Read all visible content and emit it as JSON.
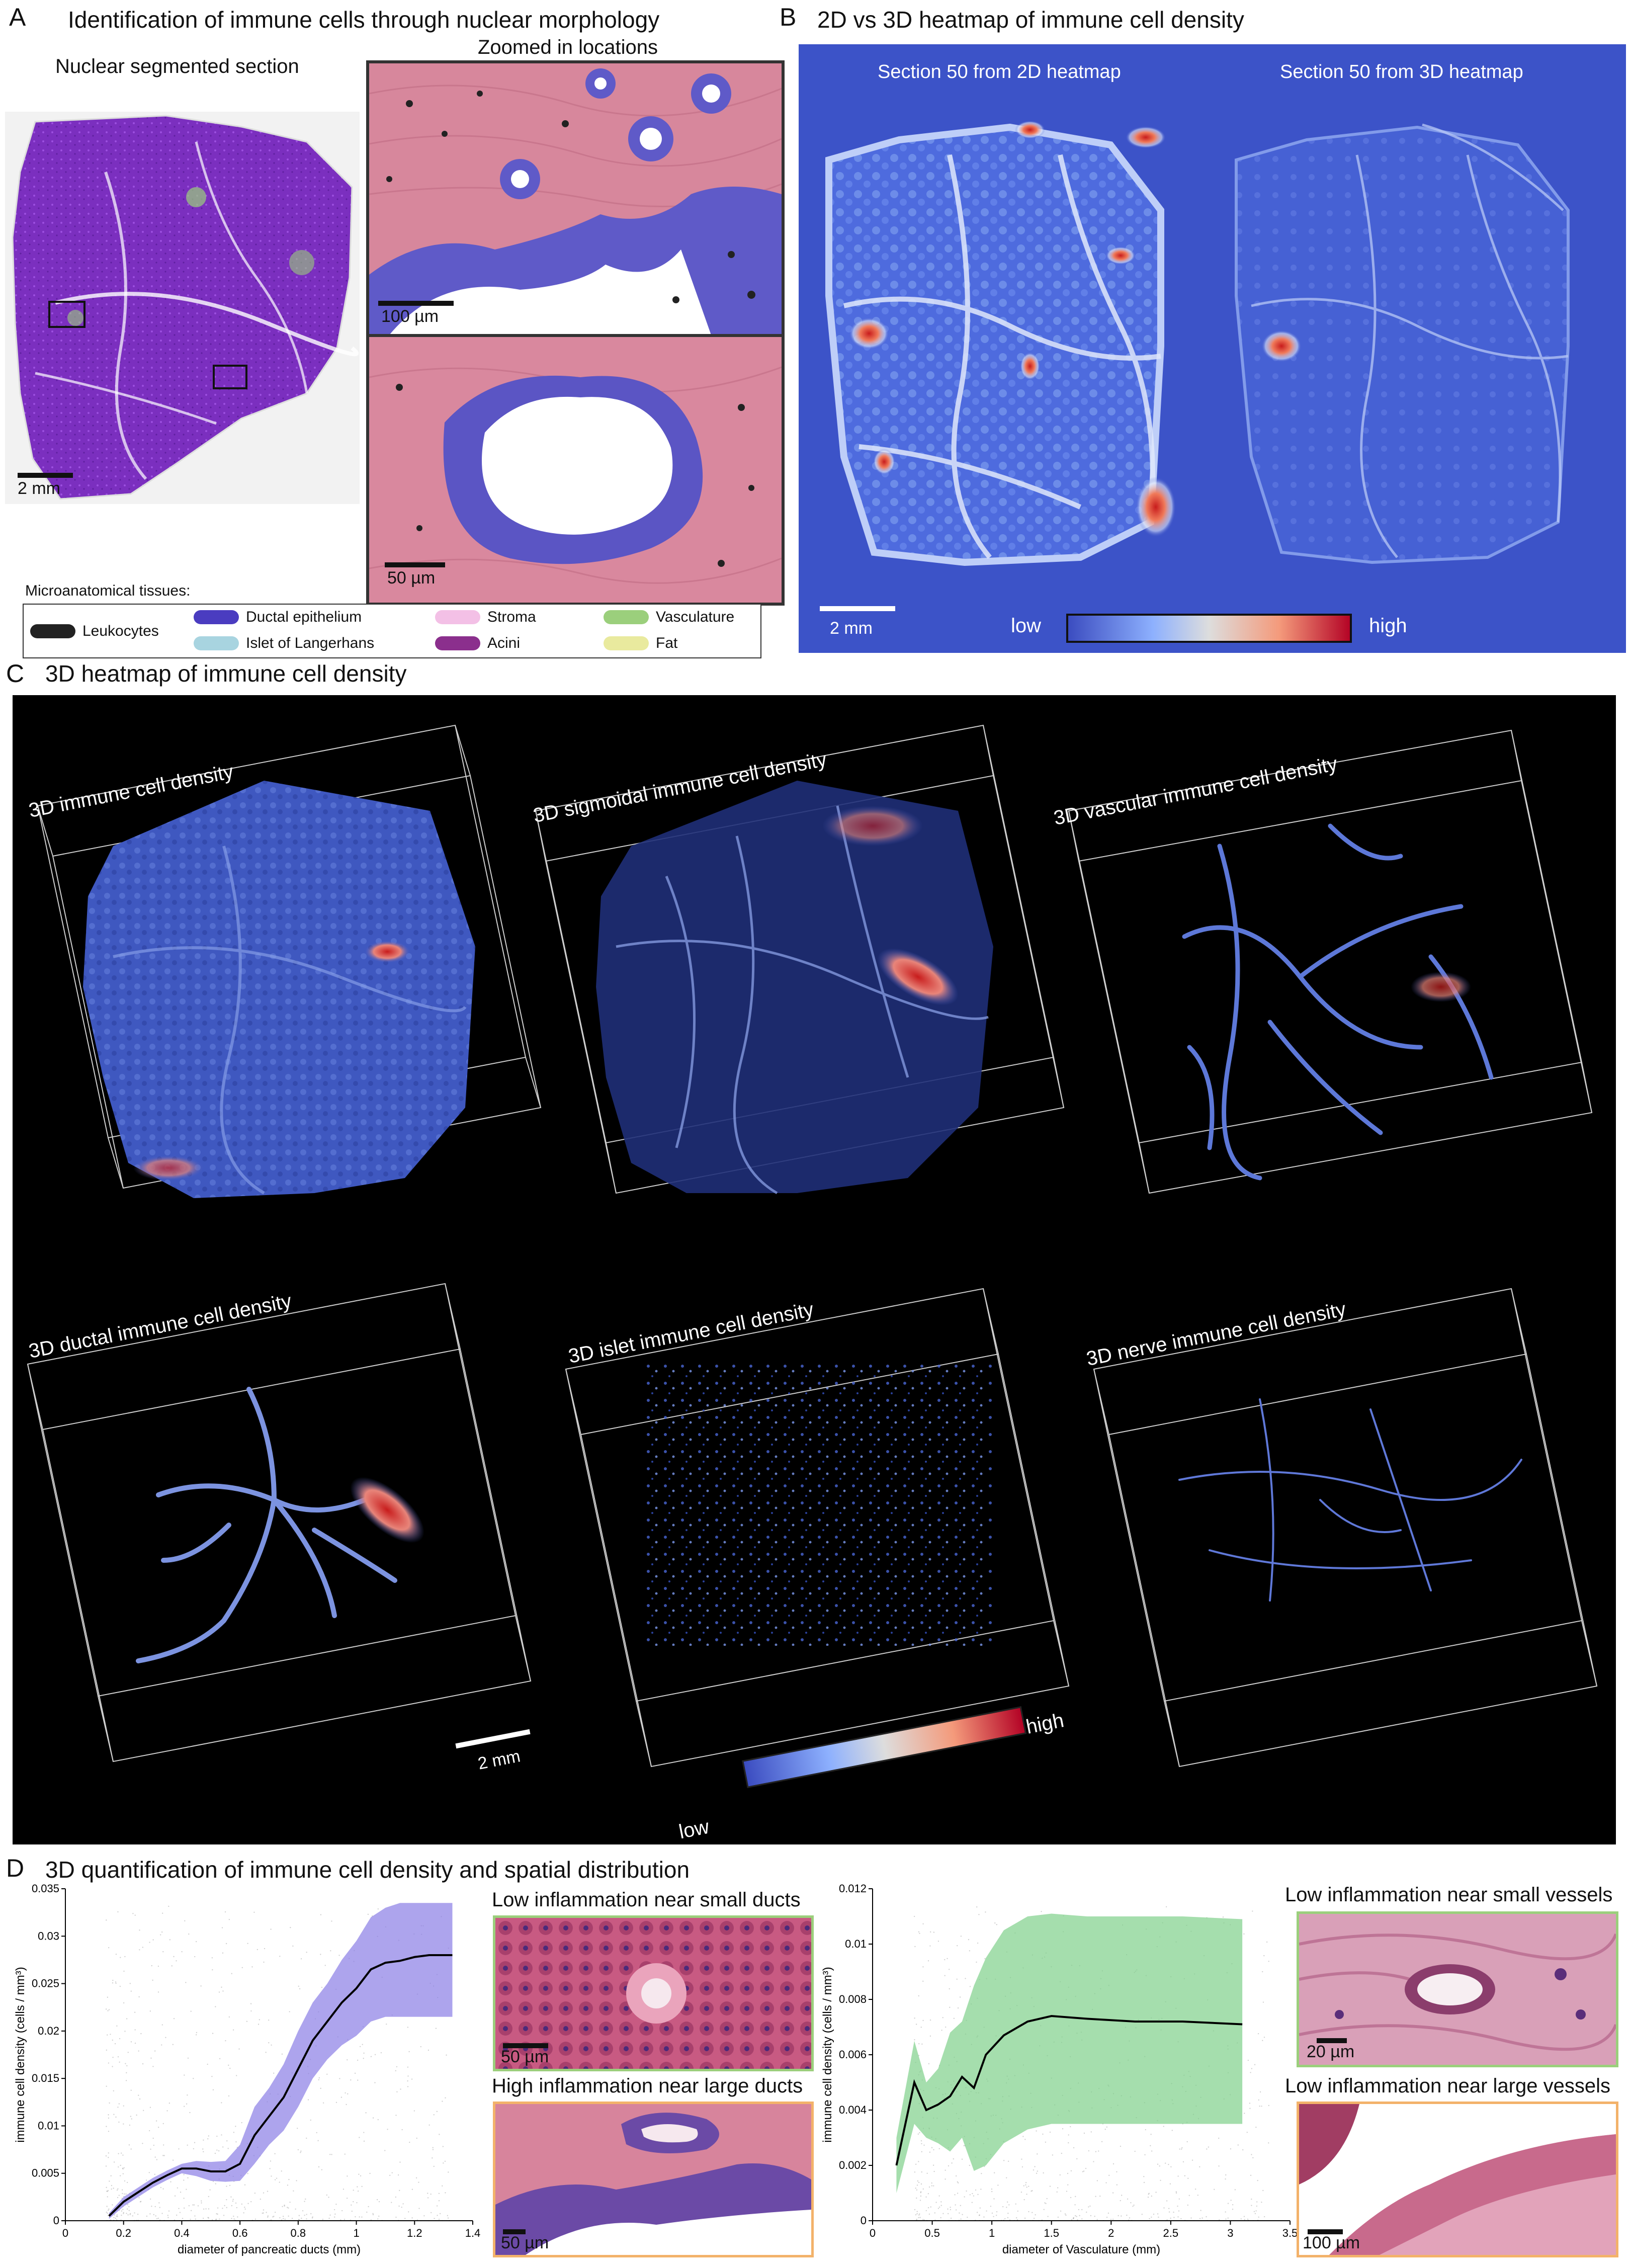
{
  "panelA": {
    "letter": "A",
    "title": "Identification of immune cells through nuclear morphology",
    "left_subtitle": "Nuclear segmented section",
    "right_subtitle": "Zoomed in locations",
    "scale_left": "2 mm",
    "scale_top": "100 µm",
    "scale_bottom": "50 µm",
    "legend_heading": "Microanatomical tissues:",
    "legend": [
      {
        "label": "Leukocytes",
        "color": "#222222"
      },
      {
        "label": "Ductal epithelium",
        "color": "#4a3cc0"
      },
      {
        "label": "Islet of Langerhans",
        "color": "#a8d4e0"
      },
      {
        "label": "Stroma",
        "color": "#f3c0e6"
      },
      {
        "label": "Acini",
        "color": "#8b2f8d"
      },
      {
        "label": "Vasculature",
        "color": "#9bcf7c"
      },
      {
        "label": "Fat",
        "color": "#e9ea9e"
      }
    ]
  },
  "panelB": {
    "letter": "B",
    "title": "2D vs 3D heatmap of immune cell density",
    "left_caption": "Section 50 from 2D heatmap",
    "right_caption": "Section 50 from 3D heatmap",
    "scale": "2 mm",
    "low": "low",
    "high": "high"
  },
  "panelC": {
    "letter": "C",
    "title": "3D heatmap of immune cell density",
    "boxes": [
      "3D immune cell density",
      "3D sigmoidal immune cell density",
      "3D vascular immune cell density",
      "3D ductal immune cell density",
      "3D islet immune cell density",
      "3D nerve immune cell density"
    ],
    "scale": "2 mm",
    "low": "low",
    "high": "high"
  },
  "panelD": {
    "letter": "D",
    "title": "3D quantification of immune cell density and spatial distribution",
    "chart_data": [
      {
        "type": "line",
        "xlabel": "diameter of pancreatic ducts (mm)",
        "ylabel": "immune cell density (cells / mm³)",
        "xlim": [
          0,
          1.4
        ],
        "ylim": [
          0,
          0.035
        ],
        "xticks": [
          "0",
          "0.2",
          "0.4",
          "0.6",
          "0.8",
          "1",
          "1.2",
          "1.4"
        ],
        "yticks": [
          "0",
          "0.005",
          "0.01",
          "0.015",
          "0.02",
          "0.025",
          "0.03",
          "0.035"
        ],
        "band_color": "#8a7ee6",
        "x": [
          0.15,
          0.2,
          0.25,
          0.3,
          0.35,
          0.4,
          0.45,
          0.5,
          0.55,
          0.6,
          0.65,
          0.7,
          0.75,
          0.8,
          0.85,
          0.9,
          0.95,
          1.0,
          1.05,
          1.1,
          1.15,
          1.2,
          1.25,
          1.3,
          1.33
        ],
        "y": [
          0.0005,
          0.002,
          0.003,
          0.004,
          0.0048,
          0.0055,
          0.0055,
          0.0052,
          0.0052,
          0.006,
          0.009,
          0.011,
          0.013,
          0.016,
          0.019,
          0.021,
          0.023,
          0.0245,
          0.0265,
          0.0272,
          0.0274,
          0.0278,
          0.028,
          0.028,
          0.028
        ],
        "upper": [
          0.0008,
          0.0025,
          0.0035,
          0.0045,
          0.0053,
          0.006,
          0.0063,
          0.0062,
          0.0063,
          0.008,
          0.012,
          0.014,
          0.0165,
          0.02,
          0.023,
          0.025,
          0.0275,
          0.0295,
          0.032,
          0.033,
          0.0335,
          0.0335,
          0.0335,
          0.0335,
          0.0335
        ],
        "lower": [
          0.0002,
          0.0015,
          0.0025,
          0.0035,
          0.0043,
          0.005,
          0.0047,
          0.0042,
          0.0041,
          0.0042,
          0.006,
          0.008,
          0.0095,
          0.012,
          0.015,
          0.017,
          0.0185,
          0.0195,
          0.021,
          0.0215,
          0.0215,
          0.0215,
          0.0215,
          0.0215,
          0.0215
        ]
      },
      {
        "type": "line",
        "xlabel": "diameter of Vasculature (mm)",
        "ylabel": "immune cell density (cells / mm³)",
        "xlim": [
          0,
          3.5
        ],
        "ylim": [
          0,
          0.012
        ],
        "xticks": [
          "0",
          "0.5",
          "1",
          "1.5",
          "2",
          "2.5",
          "3",
          "3.5"
        ],
        "yticks": [
          "0",
          "0.002",
          "0.004",
          "0.006",
          "0.008",
          "0.01",
          "0.012"
        ],
        "band_color": "#7fd08a",
        "x": [
          0.2,
          0.35,
          0.45,
          0.55,
          0.65,
          0.75,
          0.85,
          0.95,
          1.1,
          1.3,
          1.5,
          1.8,
          2.2,
          2.6,
          3.1
        ],
        "y": [
          0.002,
          0.005,
          0.004,
          0.0042,
          0.0045,
          0.0052,
          0.0048,
          0.006,
          0.0067,
          0.0072,
          0.0074,
          0.0073,
          0.0072,
          0.0072,
          0.0071
        ],
        "upper": [
          0.003,
          0.0065,
          0.005,
          0.0055,
          0.0068,
          0.0072,
          0.0085,
          0.0095,
          0.0105,
          0.011,
          0.0111,
          0.011,
          0.011,
          0.011,
          0.0109
        ],
        "lower": [
          0.001,
          0.0035,
          0.003,
          0.0028,
          0.0025,
          0.003,
          0.0018,
          0.002,
          0.0028,
          0.0033,
          0.0035,
          0.0035,
          0.0035,
          0.0035,
          0.0035
        ]
      }
    ],
    "inset_left_top": "Low inflammation near small ducts",
    "inset_left_bottom": "High inflammation near large ducts",
    "inset_right_top": "Low inflammation near small vessels",
    "inset_right_bottom": "Low inflammation near large vessels",
    "scale_ilt": "50 µm",
    "scale_ilb": "50 µm",
    "scale_irt": "20 µm",
    "scale_irb": "100 µm"
  }
}
